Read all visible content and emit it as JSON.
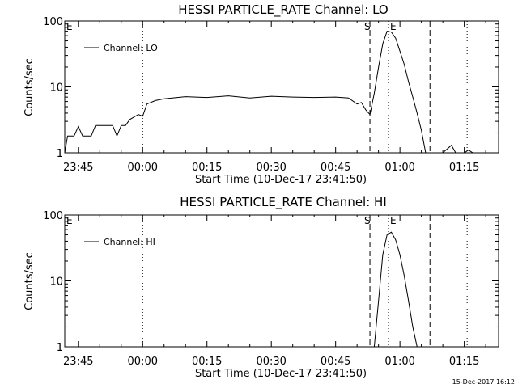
{
  "footer": {
    "timestamp": "15-Dec-2017 16:12"
  },
  "chart_data": [
    {
      "type": "line",
      "title": "HESSI PARTICLE_RATE Channel: LO",
      "xlabel": "Start Time (10-Dec-17 23:41:50)",
      "ylabel": "Counts/sec",
      "yscale": "log",
      "ylim": [
        1,
        100
      ],
      "xlim": [
        "23:41:50",
        "01:23:00"
      ],
      "x_ticks": [
        "23:45",
        "00:00",
        "00:15",
        "00:30",
        "00:45",
        "01:00",
        "01:15"
      ],
      "y_ticks": [
        "1",
        "10",
        "100"
      ],
      "legend": {
        "label": "Channel: LO",
        "position": "top-left"
      },
      "markers": [
        {
          "label": "S",
          "time": "00:53:00",
          "style": "dashed"
        },
        {
          "label": "E",
          "time": "00:57:20",
          "style": "dotted"
        },
        {
          "label": "",
          "time": "01:07:00",
          "style": "dashed"
        },
        {
          "label": "",
          "time": "01:15:40",
          "style": "dotted"
        },
        {
          "label": "",
          "time": "00:00:00",
          "style": "dotted"
        }
      ],
      "series": [
        {
          "x": [
            "23:41:50",
            "23:42:30",
            "23:43:00",
            "23:44:00",
            "23:45:00",
            "23:46:00",
            "23:46:30",
            "23:47:00",
            "23:48:00",
            "23:49:00",
            "23:50:00",
            "23:51:00",
            "23:52:00",
            "23:53:00",
            "23:54:00",
            "23:55:00",
            "23:56:00",
            "23:57:00",
            "23:58:00",
            "23:59:00",
            "00:00:00",
            "00:01:00",
            "00:03:00",
            "00:05:00",
            "00:10:00",
            "00:15:00",
            "00:20:00",
            "00:25:00",
            "00:30:00",
            "00:35:00",
            "00:40:00",
            "00:45:00",
            "00:48:00",
            "00:50:00",
            "00:51:00",
            "00:52:00",
            "00:53:00",
            "00:54:00",
            "00:55:00",
            "00:56:00",
            "00:57:00",
            "00:58:00",
            "00:59:00",
            "01:00:00",
            "01:01:00",
            "01:02:00",
            "01:03:00",
            "01:04:00",
            "01:05:00",
            "01:06:00",
            "01:07:00",
            "01:08:00",
            "01:10:00",
            "01:12:00",
            "01:13:00",
            "01:14:00",
            "01:15:00",
            "01:16:00",
            "01:17:00"
          ],
          "y": [
            1,
            1.8,
            1.8,
            1.8,
            2.5,
            1.8,
            1.8,
            1.8,
            1.8,
            2.6,
            2.6,
            2.6,
            2.6,
            2.6,
            1.8,
            2.6,
            2.6,
            3.2,
            3.5,
            3.8,
            3.6,
            5.5,
            6.2,
            6.6,
            7.1,
            6.9,
            7.3,
            6.8,
            7.2,
            7.0,
            6.9,
            7.0,
            6.8,
            5.5,
            5.8,
            4.5,
            3.8,
            8,
            20,
            45,
            70,
            68,
            55,
            35,
            22,
            12,
            7,
            4,
            2.2,
            1,
            1,
            1,
            1,
            1.3,
            1,
            1,
            1,
            1.1,
            1
          ]
        }
      ]
    },
    {
      "type": "line",
      "title": "HESSI PARTICLE_RATE Channel: HI",
      "xlabel": "Start Time (10-Dec-17 23:41:50)",
      "ylabel": "Counts/sec",
      "yscale": "log",
      "ylim": [
        1,
        100
      ],
      "xlim": [
        "23:41:50",
        "01:23:00"
      ],
      "x_ticks": [
        "23:45",
        "00:00",
        "00:15",
        "00:30",
        "00:45",
        "01:00",
        "01:15"
      ],
      "y_ticks": [
        "1",
        "10",
        "100"
      ],
      "legend": {
        "label": "Channel: HI",
        "position": "top-left"
      },
      "markers": [
        {
          "label": "S",
          "time": "00:53:00",
          "style": "dashed"
        },
        {
          "label": "E",
          "time": "00:57:20",
          "style": "dotted"
        },
        {
          "label": "",
          "time": "01:07:00",
          "style": "dashed"
        },
        {
          "label": "",
          "time": "01:15:40",
          "style": "dotted"
        },
        {
          "label": "",
          "time": "00:00:00",
          "style": "dotted"
        }
      ],
      "series": [
        {
          "x": [
            "00:54:00",
            "00:55:00",
            "00:56:00",
            "00:57:00",
            "00:58:00",
            "00:59:00",
            "01:00:00",
            "01:01:00",
            "01:02:00",
            "01:03:00",
            "01:04:00"
          ],
          "y": [
            1,
            5,
            25,
            50,
            55,
            42,
            25,
            12,
            5,
            2,
            1
          ]
        }
      ]
    }
  ]
}
